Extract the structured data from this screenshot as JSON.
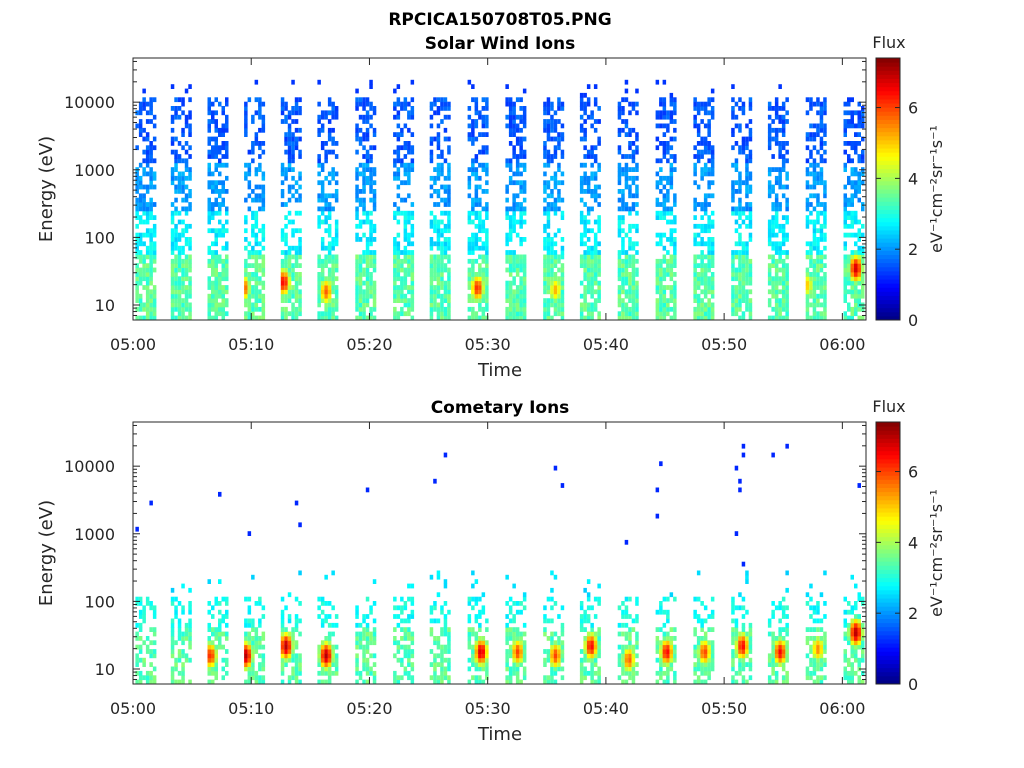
{
  "figure": {
    "title": "RPCICA150708T05.PNG"
  },
  "chart_data": [
    {
      "type": "heatmap",
      "title": "Solar Wind Ions",
      "xlabel": "Time",
      "ylabel": "Energy (eV)",
      "x_ticks": [
        "05:00",
        "05:10",
        "05:20",
        "05:30",
        "05:40",
        "05:50",
        "06:00"
      ],
      "x_range_minutes": [
        0,
        62
      ],
      "y_ticks": [
        "10",
        "100",
        "1000",
        "10000"
      ],
      "y_range": [
        6,
        45000
      ],
      "y_scale": "log",
      "colorbar": {
        "label": "Flux",
        "unit": "eV⁻¹cm⁻²sr⁻¹s⁻¹",
        "ticks": [
          "0",
          "2",
          "4",
          "6"
        ],
        "range": [
          0,
          7.4
        ]
      },
      "sweep_starts_minutes": [
        0.2,
        3.2,
        6.3,
        9.4,
        12.5,
        15.6,
        18.8,
        22.0,
        25.1,
        28.3,
        31.5,
        34.7,
        37.8,
        41.0,
        44.2,
        47.4,
        50.6,
        53.7,
        56.9,
        60.1
      ],
      "sweep_width_minutes": 1.6,
      "population": "solar-wind",
      "high_flux_events": [
        {
          "t": 9.2,
          "E": 18,
          "flux": 6.0
        },
        {
          "t": 12.6,
          "E": 22,
          "flux": 6.5
        },
        {
          "t": 16.2,
          "E": 16,
          "flux": 5.8
        },
        {
          "t": 29.0,
          "E": 18,
          "flux": 6.2
        },
        {
          "t": 35.6,
          "E": 17,
          "flux": 5.2
        },
        {
          "t": 56.9,
          "E": 20,
          "flux": 5.0
        },
        {
          "t": 61.0,
          "E": 35,
          "flux": 6.8
        }
      ]
    },
    {
      "type": "heatmap",
      "title": "Cometary Ions",
      "xlabel": "Time",
      "ylabel": "Energy (eV)",
      "x_ticks": [
        "05:00",
        "05:10",
        "05:20",
        "05:30",
        "05:40",
        "05:50",
        "06:00"
      ],
      "x_range_minutes": [
        0,
        62
      ],
      "y_ticks": [
        "10",
        "100",
        "1000",
        "10000"
      ],
      "y_range": [
        6,
        45000
      ],
      "y_scale": "log",
      "colorbar": {
        "label": "Flux",
        "unit": "eV⁻¹cm⁻²sr⁻¹s⁻¹",
        "ticks": [
          "0",
          "2",
          "4",
          "6"
        ],
        "range": [
          0,
          7.4
        ]
      },
      "sweep_starts_minutes": [
        0.2,
        3.2,
        6.3,
        9.4,
        12.5,
        15.6,
        18.8,
        22.0,
        25.1,
        28.3,
        31.5,
        34.7,
        37.8,
        41.0,
        44.2,
        47.4,
        50.6,
        53.7,
        56.9,
        60.1
      ],
      "sweep_width_minutes": 1.6,
      "population": "cometary",
      "high_flux_events": [
        {
          "t": 6.4,
          "E": 16,
          "flux": 6.2
        },
        {
          "t": 9.4,
          "E": 16,
          "flux": 7.0
        },
        {
          "t": 12.8,
          "E": 22,
          "flux": 7.0
        },
        {
          "t": 16.2,
          "E": 16,
          "flux": 7.0
        },
        {
          "t": 29.3,
          "E": 18,
          "flux": 6.8
        },
        {
          "t": 32.4,
          "E": 18,
          "flux": 6.0
        },
        {
          "t": 35.6,
          "E": 16,
          "flux": 6.0
        },
        {
          "t": 38.6,
          "E": 22,
          "flux": 6.5
        },
        {
          "t": 41.8,
          "E": 14,
          "flux": 5.8
        },
        {
          "t": 45.0,
          "E": 18,
          "flux": 6.5
        },
        {
          "t": 48.2,
          "E": 18,
          "flux": 6.0
        },
        {
          "t": 51.4,
          "E": 22,
          "flux": 6.5
        },
        {
          "t": 54.6,
          "E": 18,
          "flux": 6.5
        },
        {
          "t": 57.8,
          "E": 20,
          "flux": 5.5
        },
        {
          "t": 61.0,
          "E": 35,
          "flux": 7.0
        }
      ]
    }
  ]
}
